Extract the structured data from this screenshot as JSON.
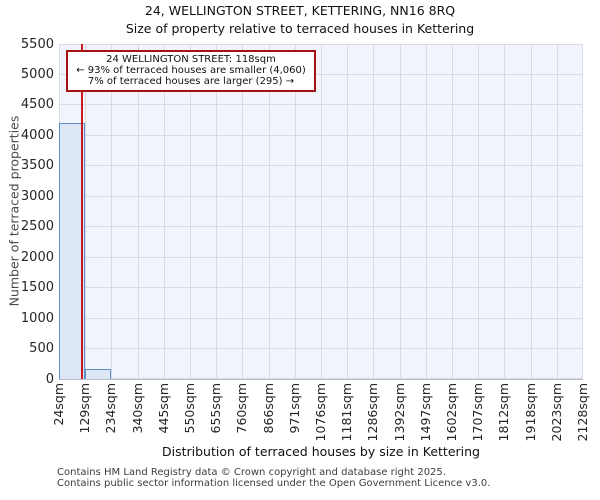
{
  "title": "24, WELLINGTON STREET, KETTERING, NN16 8RQ",
  "subtitle": "Size of property relative to terraced houses in Kettering",
  "annotation": {
    "lines": [
      "24 WELLINGTON STREET: 118sqm",
      "← 93% of terraced houses are smaller (4,060)",
      "7% of terraced houses are larger (295) →"
    ],
    "border_color": "#a51212"
  },
  "chart_data": {
    "type": "bar",
    "histogram": true,
    "title": "24, WELLINGTON STREET, KETTERING, NN16 8RQ",
    "subtitle": "Size of property relative to terraced houses in Kettering",
    "xlabel": "Distribution of terraced houses by size in Kettering",
    "ylabel": "Number of terraced properties",
    "bin_edges_sqm": [
      24,
      129,
      234,
      340,
      445,
      550,
      655,
      760,
      866,
      971,
      1076,
      1181,
      1286,
      1392,
      1497,
      1602,
      1707,
      1812,
      1918,
      2023,
      2128
    ],
    "x_tick_labels": [
      "24sqm",
      "129sqm",
      "234sqm",
      "340sqm",
      "445sqm",
      "550sqm",
      "655sqm",
      "760sqm",
      "866sqm",
      "971sqm",
      "1076sqm",
      "1181sqm",
      "1286sqm",
      "1392sqm",
      "1497sqm",
      "1602sqm",
      "1707sqm",
      "1812sqm",
      "1918sqm",
      "2023sqm",
      "2128sqm"
    ],
    "values": [
      4200,
      160,
      0,
      0,
      0,
      0,
      0,
      0,
      0,
      0,
      0,
      0,
      0,
      0,
      0,
      0,
      0,
      0,
      0,
      0
    ],
    "yticks": [
      0,
      500,
      1000,
      1500,
      2000,
      2500,
      3000,
      3500,
      4000,
      4500,
      5000,
      5500
    ],
    "ylim": [
      0,
      5500
    ],
    "grid": true,
    "legend": "none",
    "marker": {
      "value_sqm": 118,
      "label": "24 WELLINGTON STREET: 118sqm"
    },
    "smaller_count": "4,060",
    "smaller_pct": "93%",
    "larger_count": "295",
    "larger_pct": "7%",
    "colors": {
      "bar_fill": "#dce6f4",
      "bar_border": "#5c8fc7",
      "marker_line": "#c61c22",
      "plot_background": "#f1f5fb",
      "gridline": "#d8dbe4"
    }
  },
  "footer": {
    "line1": "Contains HM Land Registry data © Crown copyright and database right 2025.",
    "line2": "Contains public sector information licensed under the Open Government Licence v3.0."
  }
}
